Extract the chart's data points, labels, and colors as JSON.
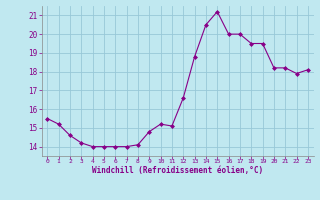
{
  "x": [
    0,
    1,
    2,
    3,
    4,
    5,
    6,
    7,
    8,
    9,
    10,
    11,
    12,
    13,
    14,
    15,
    16,
    17,
    18,
    19,
    20,
    21,
    22,
    23
  ],
  "y": [
    15.5,
    15.2,
    14.6,
    14.2,
    14.0,
    14.0,
    14.0,
    14.0,
    14.1,
    14.8,
    15.2,
    15.1,
    16.6,
    18.8,
    20.5,
    21.2,
    20.0,
    20.0,
    19.5,
    19.5,
    18.2,
    18.2,
    17.9,
    18.1
  ],
  "line_color": "#880088",
  "marker": "D",
  "marker_size": 2.0,
  "bg_color": "#c0e8f0",
  "grid_color": "#98c8d8",
  "xlabel": "Windchill (Refroidissement éolien,°C)",
  "xlabel_color": "#880088",
  "tick_color": "#880088",
  "ylim": [
    13.5,
    21.5
  ],
  "xlim": [
    -0.5,
    23.5
  ],
  "yticks": [
    14,
    15,
    16,
    17,
    18,
    19,
    20,
    21
  ],
  "xticks": [
    0,
    1,
    2,
    3,
    4,
    5,
    6,
    7,
    8,
    9,
    10,
    11,
    12,
    13,
    14,
    15,
    16,
    17,
    18,
    19,
    20,
    21,
    22,
    23
  ],
  "spine_color": "#888888",
  "linewidth": 0.8
}
